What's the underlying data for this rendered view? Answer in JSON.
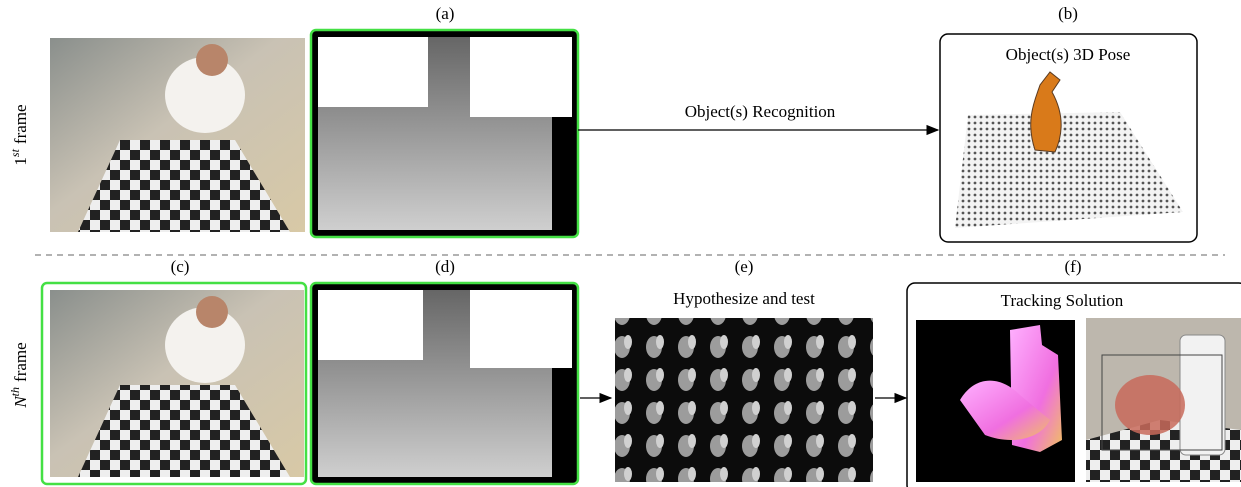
{
  "row_labels": [
    {
      "base": "1",
      "sup": "st",
      "word": "frame"
    },
    {
      "base": "N",
      "sup": "th",
      "word": "frame"
    }
  ],
  "panel_labels": [
    "(a)",
    "(b)",
    "(c)",
    "(d)",
    "(e)",
    "(f)"
  ],
  "arrow_label": "Object(s) Recognition",
  "pose_box_title": "Object(s) 3D Pose",
  "hypothesis_title": "Hypothesize and test",
  "tracking_title": "Tracking Solution"
}
